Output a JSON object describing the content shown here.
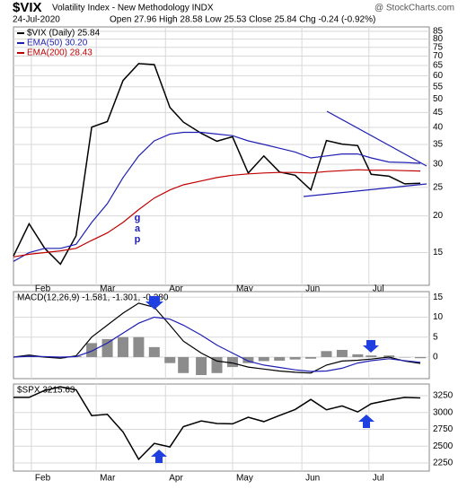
{
  "header": {
    "symbol": "$VIX",
    "name": "Volatility Index - New Methodology INDX",
    "source": "@ StockCharts.com",
    "date": "24-Jul-2020",
    "quote": "Open 27.96 High 28.58 Low 25.53 Close 25.84 Chg -0.24 (-0.92%)"
  },
  "chart_data": [
    {
      "type": "line",
      "log": true,
      "grid": true,
      "annotation": "g\na\np",
      "x": [
        "2020-01-24",
        "2020-01-31",
        "2020-02-07",
        "2020-02-14",
        "2020-02-21",
        "2020-02-28",
        "2020-03-06",
        "2020-03-13",
        "2020-03-20",
        "2020-03-27",
        "2020-04-03",
        "2020-04-09",
        "2020-04-17",
        "2020-04-24",
        "2020-05-01",
        "2020-05-08",
        "2020-05-15",
        "2020-05-22",
        "2020-05-29",
        "2020-06-05",
        "2020-06-12",
        "2020-06-19",
        "2020-06-26",
        "2020-07-02",
        "2020-07-10",
        "2020-07-17",
        "2020-07-24"
      ],
      "xlim": [
        "2020-01-24",
        "2020-07-28"
      ],
      "xticks": [
        {
          "value": "2020-02-01",
          "label": "Feb"
        },
        {
          "value": "2020-03-01",
          "label": "Mar"
        },
        {
          "value": "2020-04-01",
          "label": "Apr"
        },
        {
          "value": "2020-05-01",
          "label": "May"
        },
        {
          "value": "2020-06-01",
          "label": "Jun"
        },
        {
          "value": "2020-07-01",
          "label": "Jul"
        }
      ],
      "ylim": [
        11.6,
        88
      ],
      "yticks": [
        15,
        20,
        25,
        30,
        35,
        40,
        45,
        50,
        55,
        60,
        65,
        70,
        75,
        80,
        85
      ],
      "series": [
        {
          "name": "$VIX (Daily) 25.84",
          "color": "#000000",
          "values": [
            14.6,
            18.8,
            15.5,
            13.7,
            17.1,
            40.1,
            41.9,
            57.8,
            66,
            65.5,
            46.8,
            41.7,
            38.2,
            35.9,
            37.2,
            27.98,
            32,
            28.2,
            27.5,
            24.5,
            36.1,
            35.1,
            34.7,
            27.7,
            27.3,
            25.7,
            25.84
          ]
        },
        {
          "name": "EMA(50) 30.20",
          "color": "#1f1fb4",
          "values": [
            14,
            15,
            15.5,
            15.5,
            16,
            19,
            22,
            27,
            32,
            36,
            38,
            38.5,
            38.5,
            38,
            37.5,
            36,
            35,
            34,
            33,
            31.5,
            32,
            32.5,
            32.5,
            31.5,
            30.5,
            30.4,
            30.2
          ]
        },
        {
          "name": "EMA(200) 28.43",
          "color": "#c00000",
          "values": [
            14.5,
            14.8,
            15,
            15.2,
            15.5,
            16.5,
            17.5,
            19,
            21,
            23,
            24.5,
            25.5,
            26.3,
            27,
            27.5,
            27.8,
            28,
            28.1,
            28.1,
            28,
            28.3,
            28.5,
            28.7,
            28.6,
            28.6,
            28.5,
            28.43
          ]
        }
      ]
    },
    {
      "type": "line",
      "title": "MACD(12,26,9) -1.581, -1.301, -0.280",
      "grid": true,
      "x": [
        "2020-01-24",
        "2020-01-31",
        "2020-02-07",
        "2020-02-14",
        "2020-02-21",
        "2020-02-28",
        "2020-03-06",
        "2020-03-13",
        "2020-03-20",
        "2020-03-27",
        "2020-04-03",
        "2020-04-09",
        "2020-04-17",
        "2020-04-24",
        "2020-05-01",
        "2020-05-08",
        "2020-05-15",
        "2020-05-22",
        "2020-05-29",
        "2020-06-05",
        "2020-06-12",
        "2020-06-19",
        "2020-06-26",
        "2020-07-02",
        "2020-07-10",
        "2020-07-17",
        "2020-07-24"
      ],
      "xlim": [
        "2020-01-24",
        "2020-07-28"
      ],
      "xticks": [
        {
          "value": "2020-02-01",
          "label": "Feb"
        },
        {
          "value": "2020-03-01",
          "label": "Mar"
        },
        {
          "value": "2020-04-01",
          "label": "Apr"
        },
        {
          "value": "2020-05-01",
          "label": "May"
        },
        {
          "value": "2020-06-01",
          "label": "Jun"
        },
        {
          "value": "2020-07-01",
          "label": "Jul"
        }
      ],
      "ylim": [
        -5.4,
        16.4
      ],
      "yticks": [
        0,
        5,
        10,
        15
      ],
      "series": [
        {
          "type": "bar",
          "color": "#8c8c8c",
          "values": [
            0,
            0.3,
            -0.1,
            -0.3,
            0.2,
            3.5,
            4.5,
            5,
            5,
            2.5,
            -1.5,
            -4,
            -4.5,
            -4,
            -2.5,
            -1.5,
            -1,
            -0.9,
            -0.6,
            -0.4,
            1.5,
            1.8,
            0.7,
            0.4,
            0.4,
            -0.1,
            -0.28
          ]
        },
        {
          "color": "#000000",
          "values": [
            0,
            0.5,
            0,
            -0.3,
            0.3,
            5,
            8,
            11,
            13.5,
            12.5,
            8,
            4,
            1,
            -1,
            -1.5,
            -2.5,
            -3,
            -3.5,
            -3.8,
            -4,
            -2,
            -1,
            -0.8,
            -0.5,
            0,
            -1,
            -1.58
          ]
        },
        {
          "color": "#1f1fb4",
          "values": [
            0,
            0.2,
            0.1,
            0,
            0.1,
            1.5,
            3.5,
            6,
            8.5,
            10,
            9.5,
            8,
            5.5,
            3,
            1,
            -1,
            -2,
            -2.6,
            -3.2,
            -3.6,
            -3.5,
            -2.8,
            -1.5,
            -0.9,
            -0.4,
            -0.9,
            -1.3
          ]
        }
      ]
    },
    {
      "type": "line",
      "title": "$SPX 3215.63",
      "grid": true,
      "x": [
        "2020-01-24",
        "2020-01-31",
        "2020-02-07",
        "2020-02-14",
        "2020-02-21",
        "2020-02-28",
        "2020-03-06",
        "2020-03-13",
        "2020-03-20",
        "2020-03-27",
        "2020-04-03",
        "2020-04-09",
        "2020-04-17",
        "2020-04-24",
        "2020-05-01",
        "2020-05-08",
        "2020-05-15",
        "2020-05-22",
        "2020-05-29",
        "2020-06-05",
        "2020-06-12",
        "2020-06-19",
        "2020-06-26",
        "2020-07-02",
        "2020-07-10",
        "2020-07-17",
        "2020-07-24"
      ],
      "xlim": [
        "2020-01-24",
        "2020-07-28"
      ],
      "xticks": [
        {
          "value": "2020-02-01",
          "label": "Feb"
        },
        {
          "value": "2020-03-01",
          "label": "Mar"
        },
        {
          "value": "2020-04-01",
          "label": "Apr"
        },
        {
          "value": "2020-05-01",
          "label": "May"
        },
        {
          "value": "2020-06-01",
          "label": "Jun"
        },
        {
          "value": "2020-07-01",
          "label": "Jul"
        }
      ],
      "ylim": [
        2130,
        3423
      ],
      "yticks": [
        2250,
        2500,
        2750,
        3000,
        3250
      ],
      "series": [
        {
          "color": "#000000",
          "values": [
            3225,
            3225,
            3328,
            3380,
            3338,
            2954,
            2972,
            2711,
            2305,
            2541,
            2489,
            2790,
            2875,
            2837,
            2831,
            2930,
            2864,
            2955,
            3044,
            3194,
            3041,
            3098,
            3009,
            3130,
            3185,
            3225,
            3216
          ]
        }
      ]
    }
  ]
}
